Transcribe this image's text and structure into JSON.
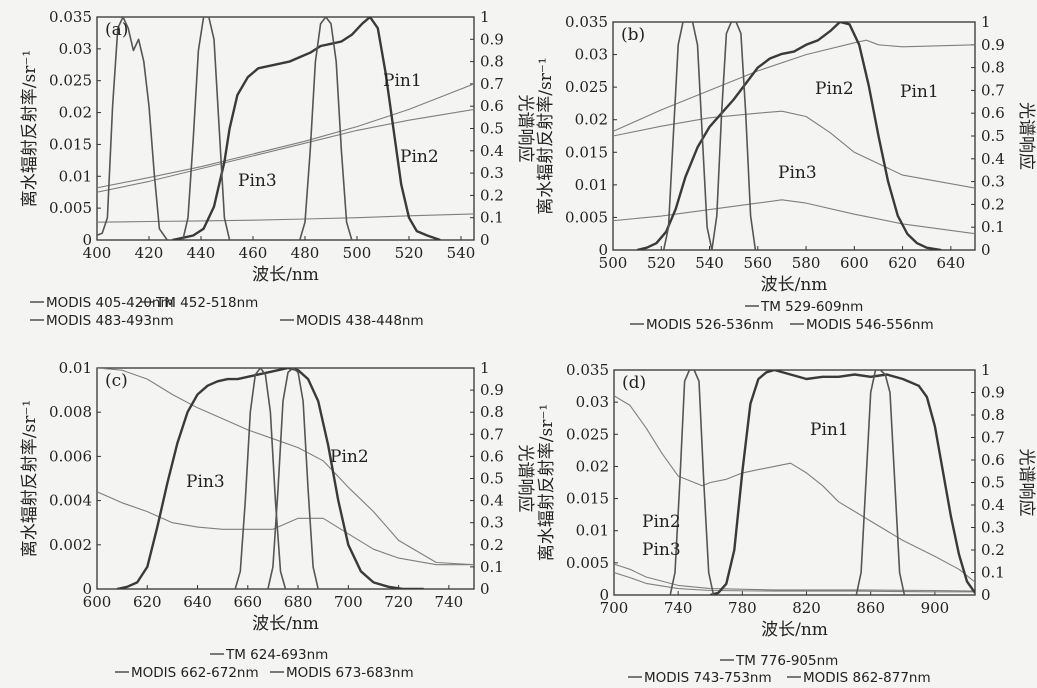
{
  "chart_data": [
    {
      "type": "line",
      "panel_label": "(a)",
      "xlabel": "波长/nm",
      "ylabel_left": "离水辐射反射率/sr⁻¹",
      "ylabel_right": "光谱响应",
      "xlim": [
        400,
        545
      ],
      "xticks": [
        "400",
        "420",
        "440",
        "460",
        "480",
        "500",
        "520",
        "540"
      ],
      "ylim_left": [
        0,
        0.035
      ],
      "yticks_left": [
        "0",
        "0.005",
        "0.01",
        "0.015",
        "0.02",
        "0.025",
        "0.03",
        "0.035"
      ],
      "ylim_right": [
        0,
        1
      ],
      "yticks_right": [
        "0",
        "0.1",
        "0.2",
        "0.3",
        "0.4",
        "0.5",
        "0.6",
        "0.7",
        "0.8",
        "0.9",
        "1"
      ],
      "series": [
        {
          "name": "Pin1",
          "axis": "left",
          "x": [
            400,
            420,
            440,
            460,
            480,
            500,
            520,
            545
          ],
          "values": [
            0.0082,
            0.0098,
            0.0115,
            0.0135,
            0.0155,
            0.0178,
            0.0205,
            0.0245
          ]
        },
        {
          "name": "Pin2",
          "axis": "left",
          "x": [
            400,
            420,
            440,
            460,
            480,
            500,
            520,
            545
          ],
          "values": [
            0.0075,
            0.0092,
            0.0112,
            0.0132,
            0.0152,
            0.0172,
            0.0188,
            0.0205
          ]
        },
        {
          "name": "Pin3",
          "axis": "left",
          "x": [
            400,
            420,
            440,
            460,
            480,
            500,
            520,
            545
          ],
          "values": [
            0.0028,
            0.0029,
            0.003,
            0.0031,
            0.0033,
            0.0035,
            0.0038,
            0.0041
          ]
        },
        {
          "name": "TM 452-518nm",
          "axis": "right",
          "x": [
            429,
            433,
            437,
            441,
            445,
            449,
            451,
            454,
            458,
            462,
            466,
            470,
            474,
            478,
            482,
            486,
            490,
            494,
            498,
            502,
            505,
            508,
            511,
            514,
            517,
            520,
            523,
            527,
            532
          ],
          "values": [
            0,
            0.01,
            0.02,
            0.05,
            0.15,
            0.35,
            0.5,
            0.65,
            0.73,
            0.77,
            0.78,
            0.79,
            0.8,
            0.82,
            0.84,
            0.87,
            0.88,
            0.89,
            0.92,
            0.97,
            1,
            0.95,
            0.75,
            0.5,
            0.25,
            0.1,
            0.04,
            0.02,
            0
          ]
        },
        {
          "name": "MODIS 405-420nm",
          "axis": "right",
          "x": [
            395,
            402,
            404,
            406,
            408,
            410,
            412,
            414,
            416,
            418,
            420,
            422,
            424,
            427
          ],
          "values": [
            0,
            0.03,
            0.1,
            0.6,
            0.95,
            1,
            0.95,
            0.85,
            0.9,
            0.8,
            0.6,
            0.3,
            0.05,
            0
          ]
        },
        {
          "name": "MODIS 438-448nm",
          "axis": "right",
          "x": [
            433,
            435,
            437,
            439,
            441,
            443,
            445,
            447,
            449,
            451
          ],
          "values": [
            0,
            0.1,
            0.45,
            0.85,
            1,
            1,
            0.9,
            0.5,
            0.1,
            0
          ]
        },
        {
          "name": "MODIS 483-493nm",
          "axis": "right",
          "x": [
            478,
            480,
            482,
            484,
            486,
            488,
            490,
            492,
            494,
            496,
            498
          ],
          "values": [
            0,
            0.08,
            0.4,
            0.8,
            0.97,
            1,
            0.97,
            0.8,
            0.4,
            0.08,
            0
          ]
        }
      ],
      "annotations": [
        "Pin1",
        "Pin2",
        "Pin3"
      ],
      "legend": [
        "TM 452-518nm",
        "MODIS 405-420nm",
        "MODIS 438-448nm",
        "MODIS 483-493nm"
      ]
    },
    {
      "type": "line",
      "panel_label": "(b)",
      "xlabel": "波长/nm",
      "ylabel_left": "离水辐射反射率/sr⁻¹",
      "ylabel_right": "光谱响应",
      "xlim": [
        500,
        650
      ],
      "xticks": [
        "500",
        "520",
        "540",
        "560",
        "580",
        "600",
        "620",
        "640"
      ],
      "ylim_left": [
        0,
        0.035
      ],
      "yticks_left": [
        "0",
        "0.005",
        "0.01",
        "0.015",
        "0.02",
        "0.025",
        "0.03",
        "0.035"
      ],
      "ylim_right": [
        0,
        1
      ],
      "yticks_right": [
        "0",
        "0.1",
        "0.2",
        "0.3",
        "0.4",
        "0.5",
        "0.6",
        "0.7",
        "0.8",
        "0.9",
        "1"
      ],
      "series": [
        {
          "name": "Pin1",
          "axis": "left",
          "x": [
            500,
            520,
            540,
            560,
            580,
            600,
            605,
            610,
            620,
            650
          ],
          "values": [
            0.0182,
            0.0215,
            0.0245,
            0.0275,
            0.03,
            0.0318,
            0.0322,
            0.0315,
            0.0312,
            0.0315
          ]
        },
        {
          "name": "Pin2",
          "axis": "left",
          "x": [
            500,
            520,
            540,
            560,
            570,
            580,
            590,
            600,
            620,
            650
          ],
          "values": [
            0.0175,
            0.019,
            0.0203,
            0.021,
            0.0213,
            0.0205,
            0.018,
            0.015,
            0.0115,
            0.0095
          ]
        },
        {
          "name": "Pin3",
          "axis": "left",
          "x": [
            500,
            520,
            540,
            560,
            570,
            580,
            600,
            620,
            650
          ],
          "values": [
            0.0045,
            0.0052,
            0.0062,
            0.0072,
            0.0077,
            0.0072,
            0.0055,
            0.004,
            0.0025
          ]
        },
        {
          "name": "TM 529-609nm",
          "axis": "right",
          "x": [
            510,
            514,
            518,
            522,
            526,
            530,
            535,
            540,
            545,
            550,
            555,
            560,
            565,
            570,
            575,
            580,
            585,
            590,
            594,
            598,
            602,
            606,
            610,
            614,
            618,
            622,
            626,
            630,
            636
          ],
          "values": [
            0,
            0.01,
            0.03,
            0.08,
            0.18,
            0.32,
            0.45,
            0.54,
            0.6,
            0.66,
            0.73,
            0.8,
            0.84,
            0.86,
            0.87,
            0.9,
            0.92,
            0.96,
            1,
            0.99,
            0.9,
            0.72,
            0.5,
            0.3,
            0.15,
            0.07,
            0.03,
            0.01,
            0
          ]
        },
        {
          "name": "MODIS 526-536nm",
          "axis": "right",
          "x": [
            521,
            523,
            525,
            527,
            529,
            531,
            533,
            535,
            537,
            539,
            541
          ],
          "values": [
            0,
            0.1,
            0.5,
            0.9,
            1,
            1,
            1,
            0.9,
            0.5,
            0.1,
            0
          ]
        },
        {
          "name": "MODIS 546-556nm",
          "axis": "right",
          "x": [
            541,
            543,
            545,
            547,
            549,
            551,
            553,
            555,
            557,
            559
          ],
          "values": [
            0,
            0.15,
            0.6,
            0.95,
            1,
            1,
            0.95,
            0.6,
            0.15,
            0
          ]
        }
      ],
      "annotations": [
        "Pin2",
        "Pin1",
        "Pin3"
      ],
      "legend": [
        "TM 529-609nm",
        "MODIS 526-536nm",
        "MODIS 546-556nm"
      ]
    },
    {
      "type": "line",
      "panel_label": "(c)",
      "xlabel": "波长/nm",
      "ylabel_left": "离水辐射反射率/sr⁻¹",
      "ylabel_right": "光谱响应",
      "xlim": [
        600,
        750
      ],
      "xticks": [
        "600",
        "620",
        "640",
        "660",
        "680",
        "700",
        "720",
        "740"
      ],
      "ylim_left": [
        0,
        0.01
      ],
      "yticks_left": [
        "0",
        "0.002",
        "0.004",
        "0.006",
        "0.008",
        "0.01"
      ],
      "ylim_right": [
        0,
        1
      ],
      "yticks_right": [
        "0",
        "0.1",
        "0.2",
        "0.3",
        "0.4",
        "0.5",
        "0.6",
        "0.7",
        "0.8",
        "0.9",
        "1"
      ],
      "series": [
        {
          "name": "Pin2",
          "axis": "left",
          "x": [
            600,
            610,
            620,
            630,
            640,
            650,
            660,
            670,
            680,
            690,
            700,
            710,
            720,
            735,
            750
          ],
          "values": [
            0.01,
            0.0099,
            0.0095,
            0.0088,
            0.0082,
            0.0077,
            0.0072,
            0.0068,
            0.0064,
            0.0058,
            0.0046,
            0.0035,
            0.0022,
            0.0012,
            0.0011
          ]
        },
        {
          "name": "Pin3",
          "axis": "left",
          "x": [
            600,
            610,
            620,
            630,
            640,
            650,
            660,
            670,
            680,
            690,
            700,
            710,
            720,
            735,
            750
          ],
          "values": [
            0.0044,
            0.0039,
            0.0035,
            0.003,
            0.0028,
            0.0027,
            0.0027,
            0.0027,
            0.0032,
            0.0032,
            0.0025,
            0.0018,
            0.0014,
            0.0011,
            0.0011
          ]
        },
        {
          "name": "TM 624-693nm",
          "axis": "right",
          "x": [
            608,
            612,
            616,
            620,
            624,
            628,
            632,
            636,
            640,
            644,
            648,
            652,
            656,
            660,
            664,
            668,
            672,
            676,
            680,
            684,
            688,
            692,
            696,
            700,
            705,
            710,
            716,
            722,
            730
          ],
          "values": [
            0,
            0.01,
            0.03,
            0.1,
            0.28,
            0.48,
            0.66,
            0.8,
            0.88,
            0.92,
            0.94,
            0.95,
            0.95,
            0.96,
            0.97,
            0.98,
            0.99,
            1,
            0.99,
            0.95,
            0.85,
            0.65,
            0.4,
            0.2,
            0.08,
            0.03,
            0.01,
            0,
            0
          ]
        },
        {
          "name": "MODIS 662-672nm",
          "axis": "right",
          "x": [
            655,
            657,
            659,
            661,
            663,
            665,
            667,
            669,
            671,
            673,
            675
          ],
          "values": [
            0,
            0.08,
            0.4,
            0.8,
            0.97,
            1,
            0.97,
            0.8,
            0.4,
            0.08,
            0
          ]
        },
        {
          "name": "MODIS 673-683nm",
          "axis": "right",
          "x": [
            668,
            670,
            672,
            674,
            676,
            678,
            680,
            682,
            684,
            686,
            688
          ],
          "values": [
            0,
            0.1,
            0.45,
            0.85,
            0.98,
            1,
            0.98,
            0.85,
            0.45,
            0.1,
            0
          ]
        }
      ],
      "annotations": [
        "Pin3",
        "Pin2"
      ],
      "legend": [
        "TM 624-693nm",
        "MODIS 662-672nm",
        "MODIS 673-683nm"
      ]
    },
    {
      "type": "line",
      "panel_label": "(d)",
      "xlabel": "波长/nm",
      "ylabel_left": "离水辐射反射率/sr⁻¹",
      "ylabel_right": "光谱响应",
      "xlim": [
        700,
        925
      ],
      "xticks": [
        "700",
        "740",
        "780",
        "820",
        "860",
        "900"
      ],
      "ylim_left": [
        0,
        0.035
      ],
      "yticks_left": [
        "0",
        "0.005",
        "0.01",
        "0.015",
        "0.02",
        "0.025",
        "0.03",
        "0.035"
      ],
      "ylim_right": [
        0,
        1
      ],
      "yticks_right": [
        "0",
        "0.1",
        "0.2",
        "0.3",
        "0.4",
        "0.5",
        "0.6",
        "0.7",
        "0.8",
        "0.9",
        "1"
      ],
      "series": [
        {
          "name": "Pin1",
          "axis": "left",
          "x": [
            700,
            710,
            720,
            730,
            740,
            750,
            755,
            760,
            770,
            780,
            790,
            800,
            810,
            820,
            830,
            840,
            860,
            880,
            900,
            915,
            925
          ],
          "values": [
            0.031,
            0.0295,
            0.026,
            0.022,
            0.0185,
            0.0175,
            0.017,
            0.0175,
            0.018,
            0.019,
            0.0195,
            0.02,
            0.0205,
            0.019,
            0.017,
            0.0145,
            0.0115,
            0.0085,
            0.006,
            0.004,
            0.002
          ]
        },
        {
          "name": "Pin2",
          "axis": "left",
          "x": [
            700,
            710,
            720,
            740,
            760,
            800,
            850,
            900,
            925
          ],
          "values": [
            0.0048,
            0.004,
            0.0028,
            0.0015,
            0.001,
            0.0008,
            0.0008,
            0.0007,
            0.0006
          ]
        },
        {
          "name": "Pin3",
          "axis": "left",
          "x": [
            700,
            710,
            720,
            740,
            760,
            800,
            850,
            900,
            925
          ],
          "values": [
            0.0035,
            0.0027,
            0.0018,
            0.001,
            0.0007,
            0.0006,
            0.0006,
            0.0005,
            0.0005
          ]
        },
        {
          "name": "TM 776-905nm",
          "axis": "right",
          "x": [
            760,
            765,
            770,
            775,
            780,
            785,
            790,
            795,
            800,
            810,
            820,
            830,
            840,
            850,
            860,
            870,
            880,
            890,
            895,
            900,
            905,
            910,
            915,
            920,
            925
          ],
          "values": [
            0,
            0.01,
            0.05,
            0.2,
            0.55,
            0.85,
            0.96,
            0.99,
            1,
            0.98,
            0.96,
            0.97,
            0.97,
            0.98,
            0.97,
            0.98,
            0.96,
            0.93,
            0.88,
            0.75,
            0.55,
            0.35,
            0.18,
            0.06,
            0.01
          ]
        },
        {
          "name": "MODIS 743-753nm",
          "axis": "right",
          "x": [
            735,
            738,
            741,
            744,
            747,
            750,
            753,
            756,
            759,
            762
          ],
          "values": [
            0,
            0.1,
            0.5,
            0.95,
            1,
            1,
            0.95,
            0.5,
            0.1,
            0
          ]
        },
        {
          "name": "MODIS 862-877nm",
          "axis": "right",
          "x": [
            851,
            854,
            857,
            860,
            863,
            866,
            869,
            872,
            875,
            878,
            881
          ],
          "values": [
            0,
            0.1,
            0.5,
            0.9,
            1,
            1,
            0.98,
            0.9,
            0.5,
            0.1,
            0
          ]
        }
      ],
      "annotations": [
        "Pin1",
        "Pin2",
        "Pin3"
      ],
      "legend": [
        "TM 776-905nm",
        "MODIS 743-753nm",
        "MODIS 862-877nm"
      ]
    }
  ]
}
